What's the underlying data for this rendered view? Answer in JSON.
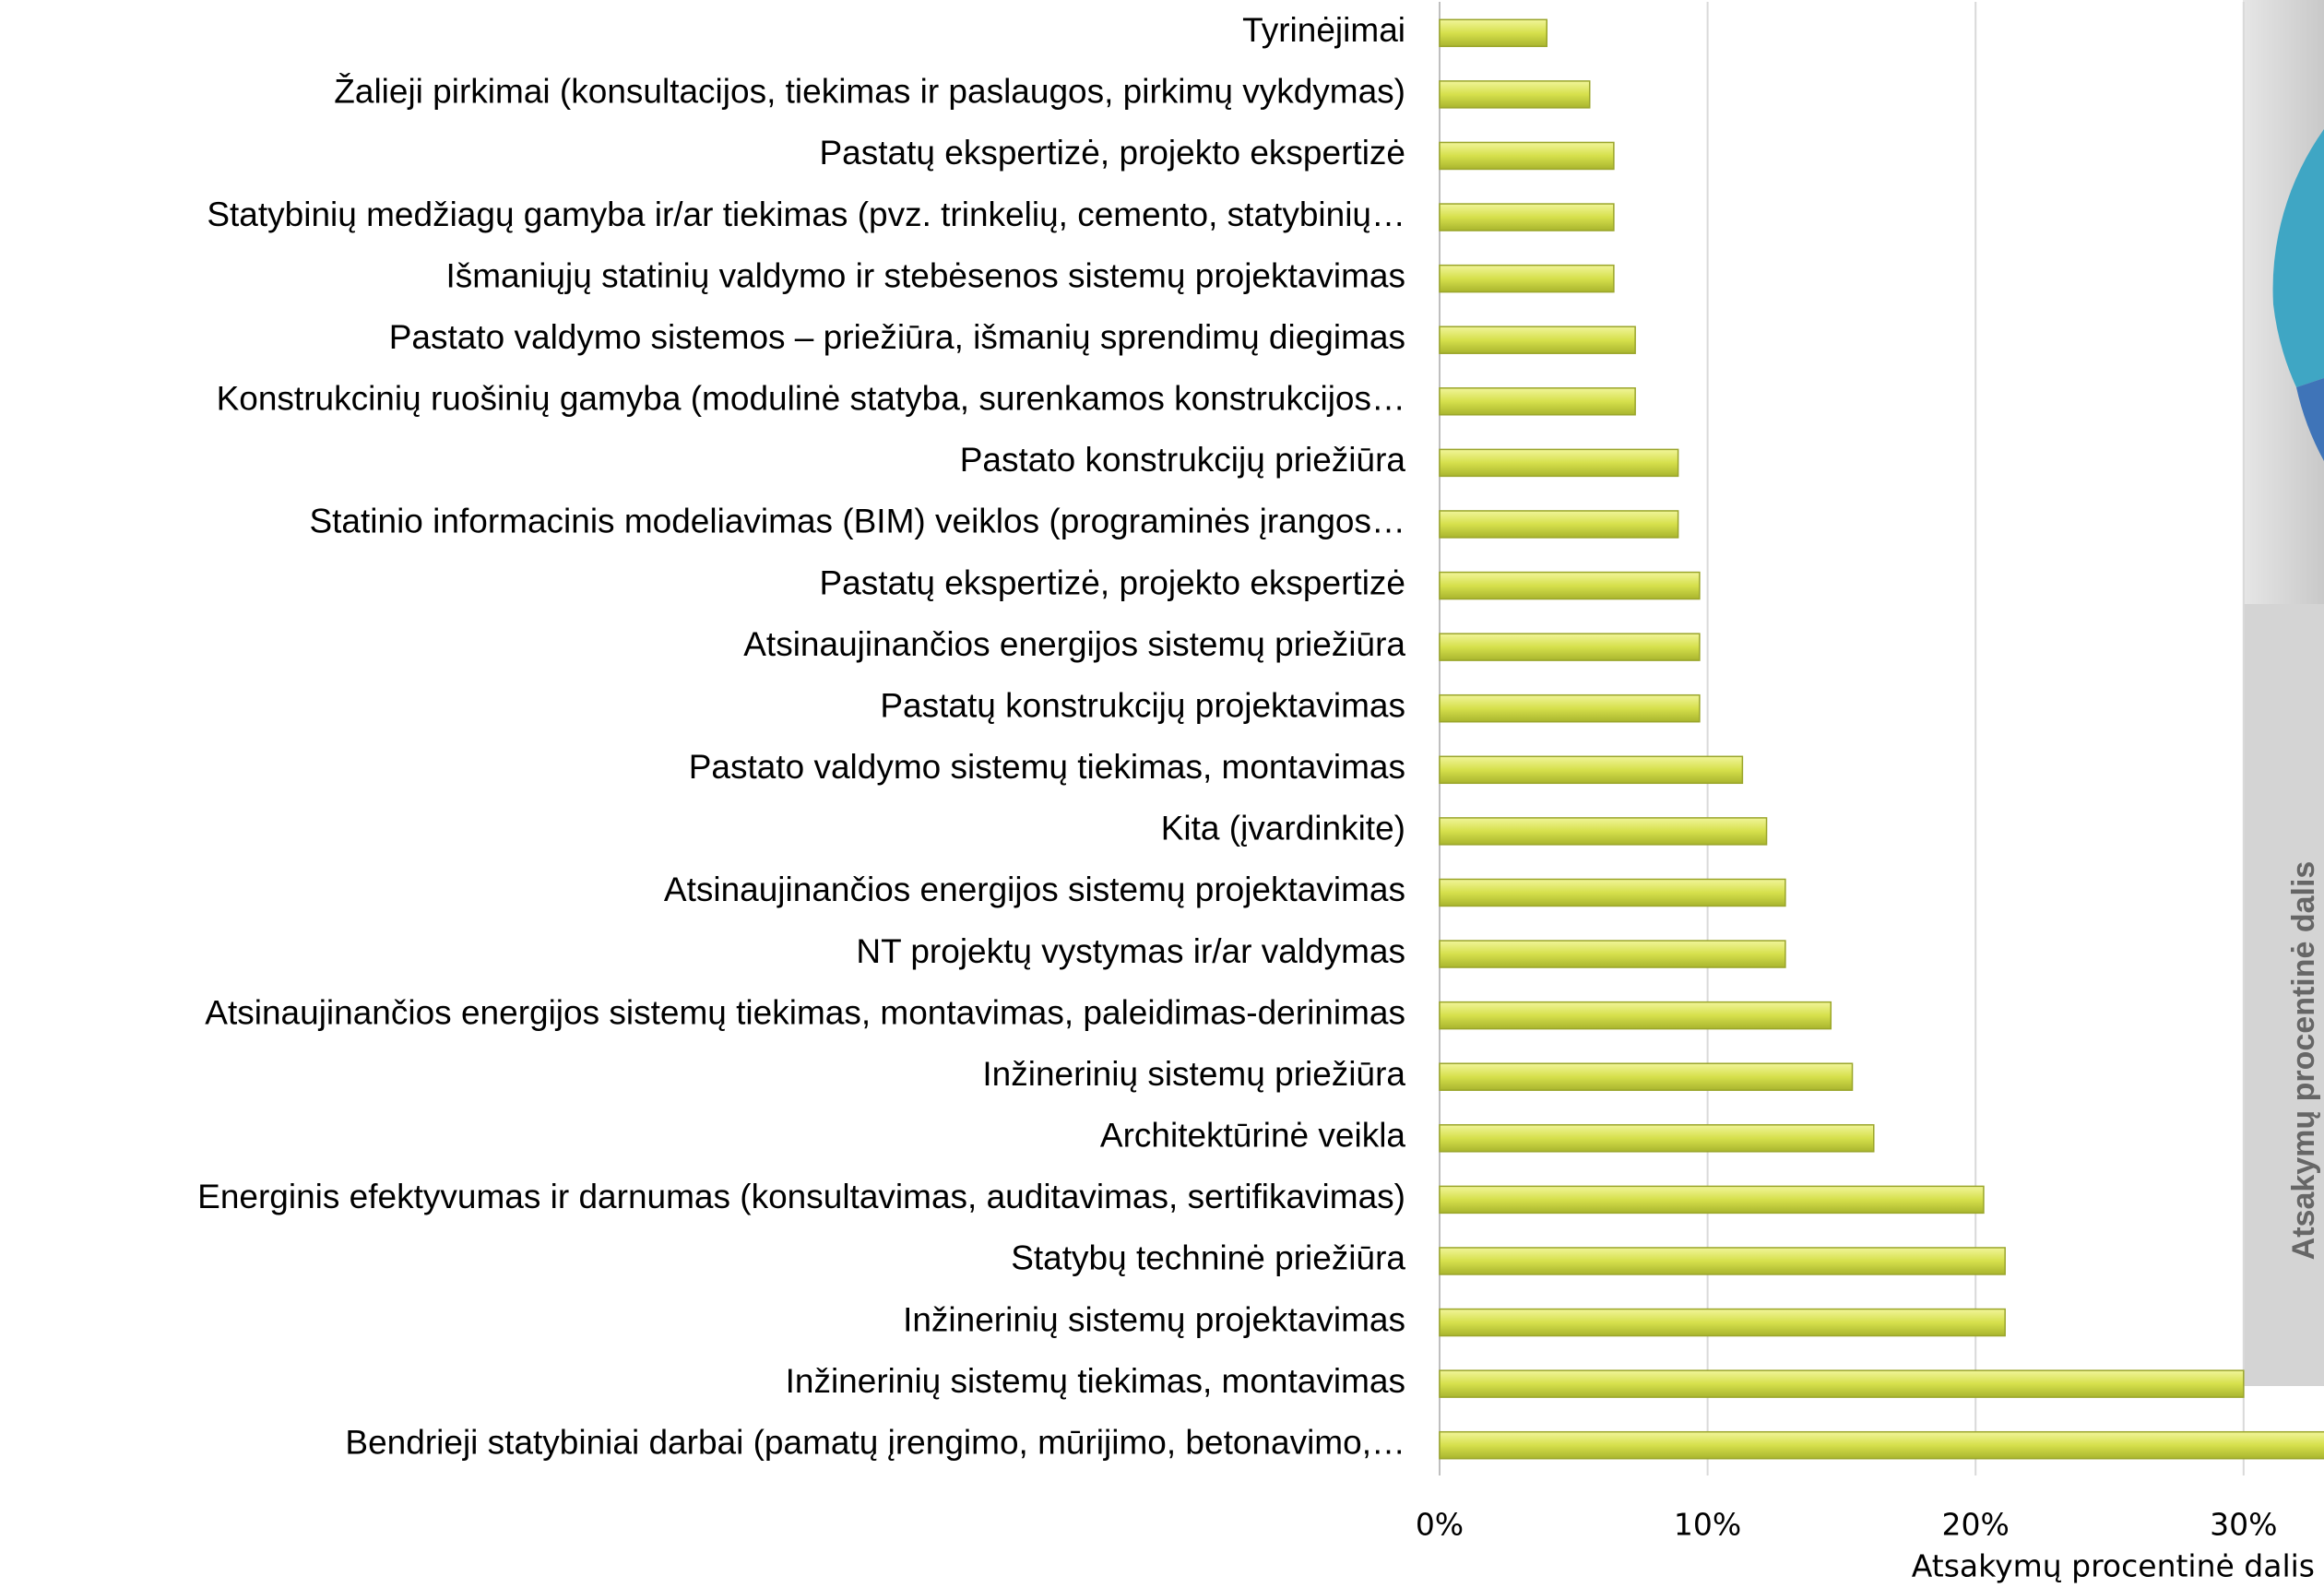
{
  "chart_data": {
    "type": "hbar",
    "categories": [
      "Tyrinėjimai",
      "Žalieji pirkimai (konsultacijos, tiekimas ir paslaugos, pirkimų vykdymas)",
      "Pastatų ekspertizė, projekto ekspertizė",
      "Statybinių medžiagų gamyba ir/ar tiekimas (pvz. trinkelių, cemento, statybinių…",
      "Išmaniųjų statinių valdymo ir stebėsenos sistemų projektavimas",
      "Pastato valdymo sistemos – priežiūra, išmanių sprendimų diegimas",
      "Konstrukcinių ruošinių gamyba (modulinė statyba, surenkamos konstrukcijos…",
      "Pastato konstrukcijų priežiūra",
      "Statinio informacinis modeliavimas (BIM) veiklos  (programinės įrangos…",
      "Pastatų ekspertizė, projekto ekspertizė",
      "Atsinaujinančios energijos sistemų priežiūra",
      "Pastatų konstrukcijų projektavimas",
      "Pastato valdymo sistemų tiekimas, montavimas",
      "Kita (įvardinkite)",
      "Atsinaujinančios energijos sistemų projektavimas",
      "NT projektų vystymas ir/ar valdymas",
      "Atsinaujinančios energijos sistemų tiekimas, montavimas, paleidimas-derinimas",
      "Inžinerinių sistemų priežiūra",
      "Architektūrinė veikla",
      "Energinis efektyvumas ir darnumas (konsultavimas, auditavimas, sertifikavimas)",
      "Statybų techninė priežiūra",
      "Inžinerinių sistemų projektavimas",
      "Inžinerinių sistemų tiekimas, montavimas",
      "Bendrieji statybiniai darbai (pamatų įrengimo, mūrijimo, betonavimo,…"
    ],
    "values": [
      4.0,
      5.6,
      6.5,
      6.5,
      6.5,
      7.3,
      7.3,
      8.9,
      8.9,
      9.7,
      9.7,
      9.7,
      11.3,
      12.2,
      12.9,
      12.9,
      14.6,
      15.4,
      16.2,
      20.3,
      21.1,
      21.1,
      30.0,
      34.0
    ],
    "color": "#d6e04c",
    "xlim": [
      0,
      33
    ],
    "xticks": [
      {
        "value": 0,
        "label": "0%"
      },
      {
        "value": 10,
        "label": "10%"
      },
      {
        "value": 20,
        "label": "20%"
      },
      {
        "value": 30,
        "label": "30%"
      }
    ],
    "grid": true,
    "x_label": "Atsakymų procentinė dalis",
    "side_label": "Atsakymų procentinė dalis"
  }
}
